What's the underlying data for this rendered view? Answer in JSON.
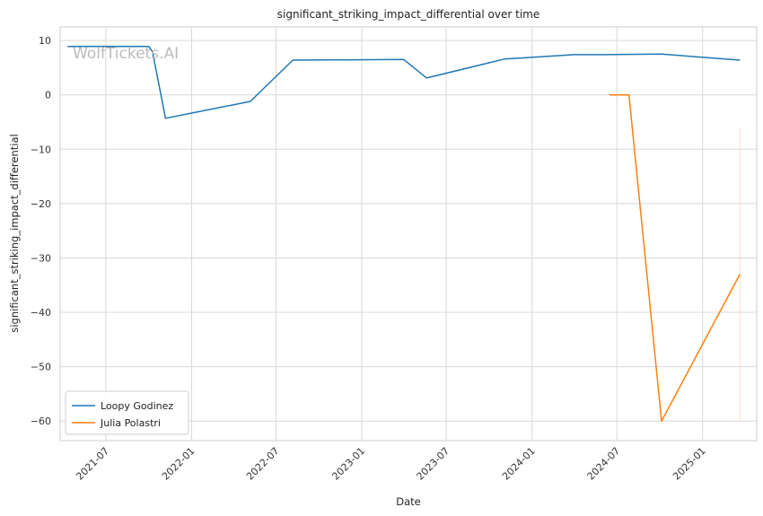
{
  "chart_data": {
    "type": "line",
    "title": "significant_striking_impact_differential over time",
    "xlabel": "Date",
    "ylabel": "significant_striking_impact_differential",
    "watermark": "WolfTickets.AI",
    "xlim": [
      "2021-03-25",
      "2025-04-27"
    ],
    "ylim": [
      -63.6,
      12.5
    ],
    "x_ticks": [
      "2021-07-01",
      "2022-01-01",
      "2022-07-01",
      "2023-01-01",
      "2023-07-01",
      "2024-01-01",
      "2024-07-01",
      "2025-01-01"
    ],
    "x_tick_labels": [
      "2021-07",
      "2022-01",
      "2022-07",
      "2023-01",
      "2023-07",
      "2024-01",
      "2024-07",
      "2025-01"
    ],
    "y_ticks": [
      10,
      0,
      -10,
      -20,
      -30,
      -40,
      -50,
      -60
    ],
    "y_tick_labels": [
      "10",
      "0",
      "−10",
      "−20",
      "−30",
      "−40",
      "−50",
      "−60"
    ],
    "grid": true,
    "legend_position": "lower-left",
    "series": [
      {
        "name": "Loopy Godinez",
        "color": "#1f77b4",
        "points": [
          {
            "x": "2021-04-10",
            "y": 8.9
          },
          {
            "x": "2021-10-01",
            "y": 8.9
          },
          {
            "x": "2021-10-09",
            "y": 8.0
          },
          {
            "x": "2021-11-06",
            "y": -4.3
          },
          {
            "x": "2022-05-07",
            "y": -1.2
          },
          {
            "x": "2022-08-06",
            "y": 6.4
          },
          {
            "x": "2023-04-01",
            "y": 6.5
          },
          {
            "x": "2023-05-20",
            "y": 3.1
          },
          {
            "x": "2023-09-02",
            "y": 5.3
          },
          {
            "x": "2023-11-04",
            "y": 6.6
          },
          {
            "x": "2024-03-30",
            "y": 7.4
          },
          {
            "x": "2024-06-01",
            "y": 7.4
          },
          {
            "x": "2024-10-05",
            "y": 7.5
          },
          {
            "x": "2025-03-22",
            "y": 6.4
          }
        ]
      },
      {
        "name": "Julia Polastri",
        "color": "#ff7f0e",
        "points": [
          {
            "x": "2024-06-15",
            "y": 0
          },
          {
            "x": "2024-07-27",
            "y": 0
          },
          {
            "x": "2024-10-05",
            "y": -60
          },
          {
            "x": "2025-03-22",
            "y": -33
          }
        ],
        "band": {
          "x": "2025-03-22",
          "y_low": -60,
          "y_high": -6
        }
      }
    ]
  }
}
